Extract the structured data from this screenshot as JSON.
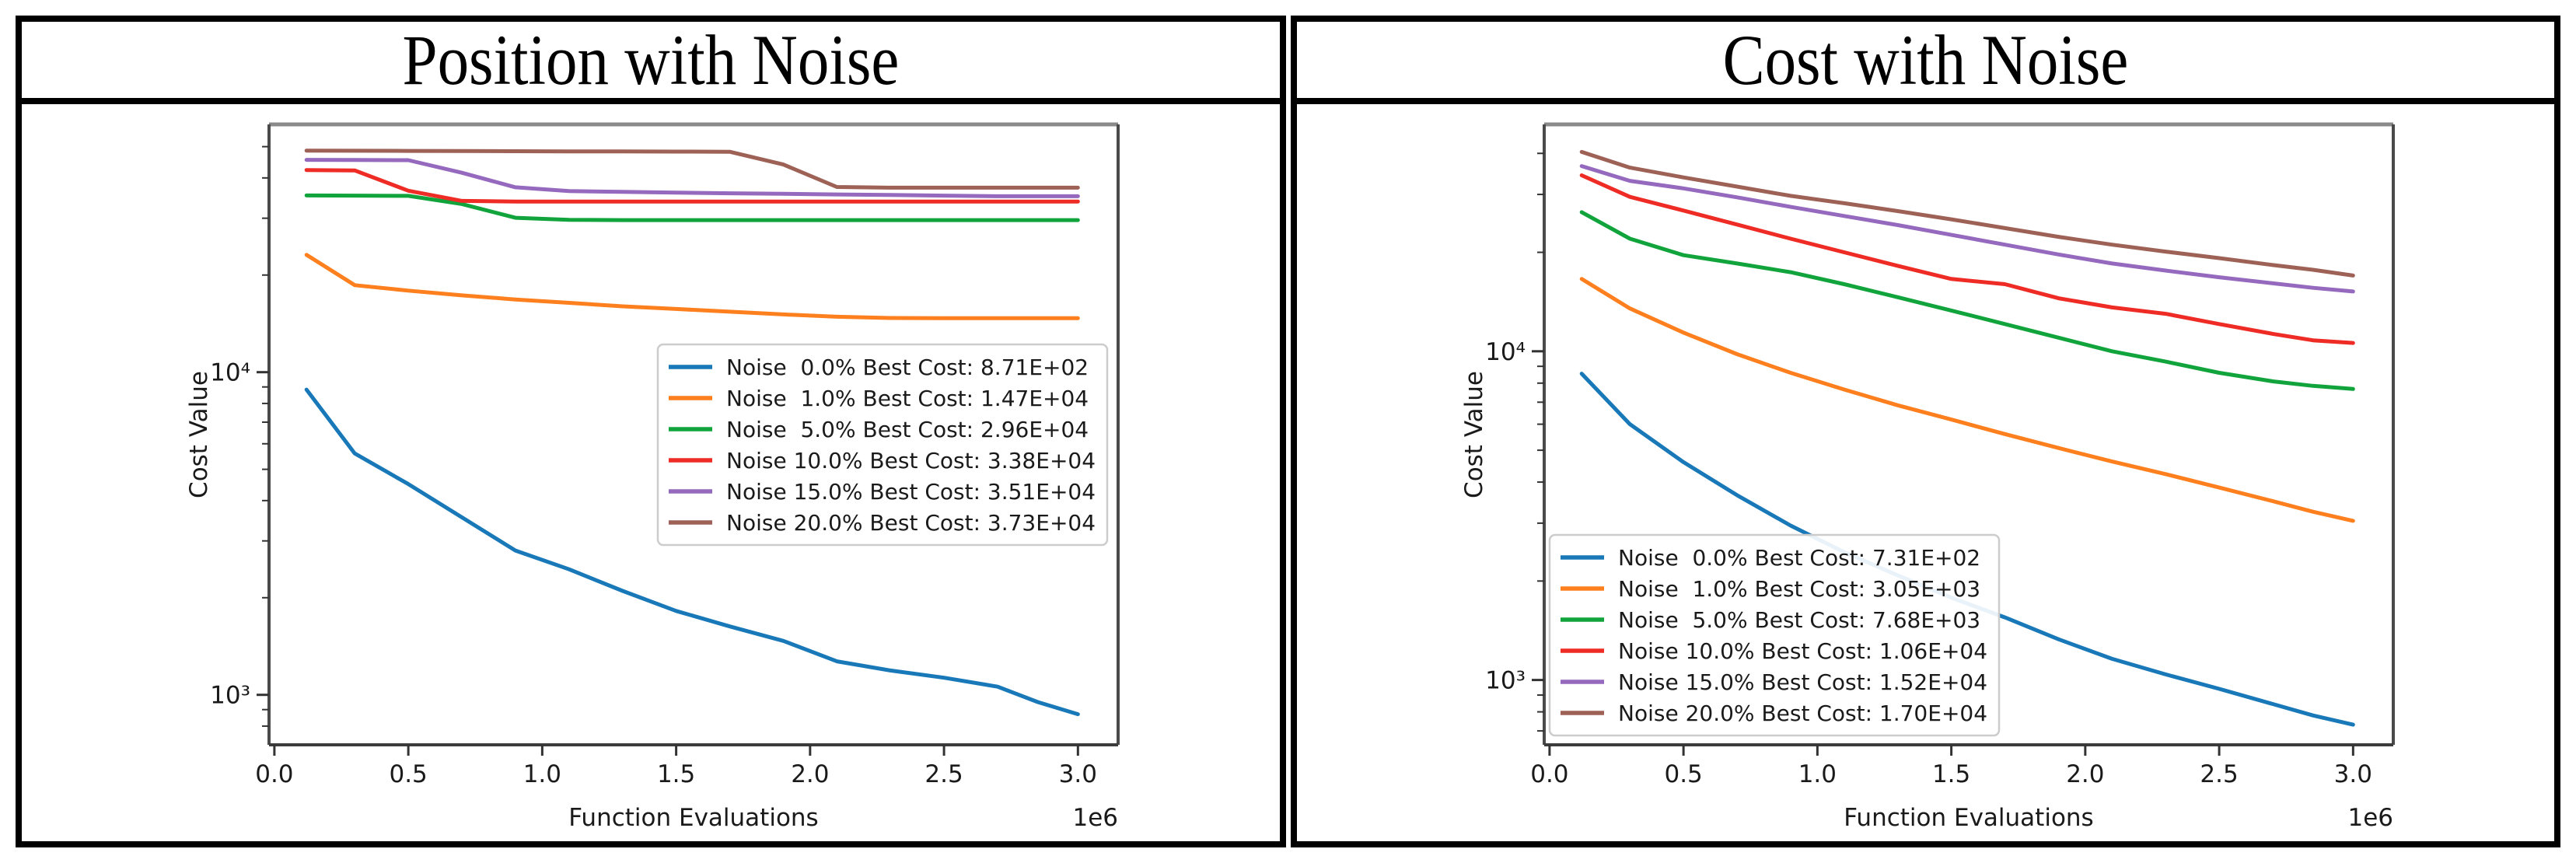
{
  "panels": [
    {
      "title": "Position with Noise"
    },
    {
      "title": "Cost with Noise"
    }
  ],
  "chart_data": [
    {
      "type": "line",
      "title": "Position with Noise",
      "xlabel": "Function Evaluations",
      "ylabel": "Cost Value",
      "x_offset_label": "1e6",
      "yscale": "log",
      "xlim": [
        -0.02,
        3.15
      ],
      "ylim": [
        700,
        58600
      ],
      "x_ticks": [
        0.0,
        0.5,
        1.0,
        1.5,
        2.0,
        2.5,
        3.0
      ],
      "y_major_ticks": [
        {
          "value": 1000,
          "label": "10³"
        },
        {
          "value": 10000,
          "label": "10⁴"
        }
      ],
      "grid": false,
      "legend_loc": "center-right",
      "x": [
        0.12,
        0.3,
        0.5,
        0.7,
        0.9,
        1.1,
        1.3,
        1.5,
        1.7,
        1.9,
        2.1,
        2.3,
        2.5,
        2.7,
        2.85,
        3.0
      ],
      "series": [
        {
          "name": "Noise  0.0% Best Cost: 8.71E+02",
          "color": "#1878b8",
          "values": [
            8830,
            5600,
            4500,
            3550,
            2800,
            2450,
            2100,
            1820,
            1630,
            1470,
            1270,
            1190,
            1130,
            1060,
            950,
            871
          ]
        },
        {
          "name": "Noise  1.0% Best Cost: 1.47E+04",
          "color": "#fd7f1e",
          "values": [
            23100,
            18600,
            17900,
            17300,
            16800,
            16400,
            16000,
            15700,
            15400,
            15100,
            14850,
            14720,
            14700,
            14700,
            14700,
            14700
          ]
        },
        {
          "name": "Noise  5.0% Best Cost: 2.96E+04",
          "color": "#12a43c",
          "values": [
            35300,
            35250,
            35200,
            33200,
            30100,
            29650,
            29600,
            29600,
            29600,
            29600,
            29600,
            29600,
            29600,
            29600,
            29600,
            29600
          ]
        },
        {
          "name": "Noise 10.0% Best Cost: 3.38E+04",
          "color": "#ee2b24",
          "values": [
            42300,
            42200,
            36500,
            33950,
            33800,
            33800,
            33800,
            33800,
            33800,
            33800,
            33800,
            33800,
            33800,
            33800,
            33800,
            33800
          ]
        },
        {
          "name": "Noise 15.0% Best Cost: 3.51E+04",
          "color": "#9569bd",
          "values": [
            45500,
            45450,
            45400,
            41500,
            37400,
            36400,
            36200,
            36000,
            35850,
            35700,
            35550,
            35400,
            35250,
            35100,
            35100,
            35100
          ]
        },
        {
          "name": "Noise 20.0% Best Cost: 3.73E+04",
          "color": "#9d6156",
          "values": [
            48600,
            48550,
            48500,
            48450,
            48400,
            48350,
            48300,
            48250,
            48200,
            44000,
            37500,
            37300,
            37300,
            37300,
            37300,
            37300
          ]
        }
      ]
    },
    {
      "type": "line",
      "title": "Cost with Noise",
      "xlabel": "Function Evaluations",
      "ylabel": "Cost Value",
      "x_offset_label": "1e6",
      "yscale": "log",
      "xlim": [
        -0.02,
        3.15
      ],
      "ylim": [
        635,
        49000
      ],
      "x_ticks": [
        0.0,
        0.5,
        1.0,
        1.5,
        2.0,
        2.5,
        3.0
      ],
      "y_major_ticks": [
        {
          "value": 1000,
          "label": "10³"
        },
        {
          "value": 10000,
          "label": "10⁴"
        }
      ],
      "grid": false,
      "legend_loc": "lower-left",
      "x": [
        0.12,
        0.3,
        0.5,
        0.7,
        0.9,
        1.1,
        1.3,
        1.5,
        1.7,
        1.9,
        2.1,
        2.3,
        2.5,
        2.7,
        2.85,
        3.0
      ],
      "series": [
        {
          "name": "Noise  0.0% Best Cost: 7.31E+02",
          "color": "#1878b8",
          "values": [
            8550,
            6000,
            4600,
            3650,
            2950,
            2450,
            2080,
            1780,
            1550,
            1330,
            1160,
            1040,
            940,
            845,
            780,
            731
          ]
        },
        {
          "name": "Noise  1.0% Best Cost: 3.05E+03",
          "color": "#fd7f1e",
          "values": [
            16600,
            13500,
            11400,
            9800,
            8600,
            7650,
            6850,
            6200,
            5600,
            5080,
            4620,
            4230,
            3850,
            3500,
            3250,
            3050
          ]
        },
        {
          "name": "Noise  5.0% Best Cost: 7.68E+03",
          "color": "#12a43c",
          "values": [
            26500,
            22000,
            19600,
            18500,
            17400,
            16000,
            14600,
            13300,
            12100,
            11000,
            10000,
            9300,
            8600,
            8100,
            7850,
            7680
          ]
        },
        {
          "name": "Noise 10.0% Best Cost: 1.06E+04",
          "color": "#ee2b24",
          "values": [
            34300,
            29500,
            26800,
            24300,
            22000,
            20000,
            18200,
            16600,
            16000,
            14500,
            13600,
            13000,
            12100,
            11300,
            10800,
            10600
          ]
        },
        {
          "name": "Noise 15.0% Best Cost: 1.52E+04",
          "color": "#9569bd",
          "values": [
            36600,
            33000,
            31300,
            29400,
            27500,
            25800,
            24200,
            22600,
            21100,
            19700,
            18500,
            17600,
            16800,
            16100,
            15600,
            15200
          ]
        },
        {
          "name": "Noise 20.0% Best Cost: 1.70E+04",
          "color": "#9d6156",
          "values": [
            40400,
            36200,
            33800,
            31700,
            29700,
            28200,
            26700,
            25200,
            23700,
            22300,
            21100,
            20100,
            19200,
            18300,
            17700,
            17000
          ]
        }
      ]
    }
  ]
}
